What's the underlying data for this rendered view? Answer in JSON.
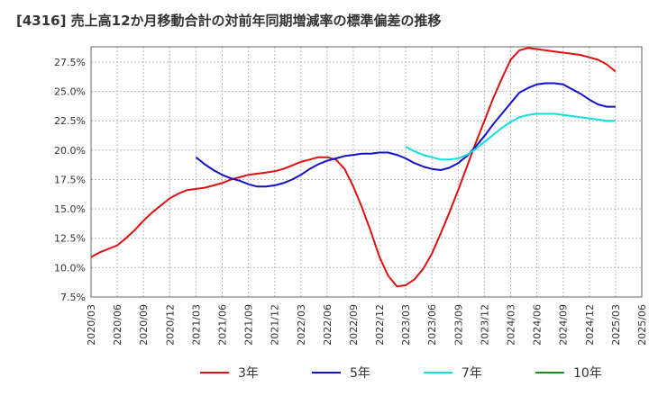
{
  "chart_data": {
    "type": "line",
    "title": "[4316]  売上高12か月移動合計の対前年同期増減率の標準偏差の推移",
    "xlabel": "",
    "ylabel": "",
    "x_ticks": [
      "2020/03",
      "2020/06",
      "2020/09",
      "2020/12",
      "2021/03",
      "2021/06",
      "2021/09",
      "2021/12",
      "2022/03",
      "2022/06",
      "2022/09",
      "2022/12",
      "2023/03",
      "2023/06",
      "2023/09",
      "2023/12",
      "2024/03",
      "2024/06",
      "2024/09",
      "2024/12",
      "2025/03",
      "2025/06"
    ],
    "y_ticks": [
      "7.5%",
      "10.0%",
      "12.5%",
      "15.0%",
      "17.5%",
      "20.0%",
      "22.5%",
      "25.0%",
      "27.5%"
    ],
    "ylim": [
      7.5,
      28.8
    ],
    "grid": true,
    "legend_position": "bottom",
    "series": [
      {
        "name": "3年",
        "color": "#dd1111",
        "x": [
          "2020/03",
          "2020/04",
          "2020/05",
          "2020/06",
          "2020/07",
          "2020/08",
          "2020/09",
          "2020/10",
          "2020/11",
          "2020/12",
          "2021/01",
          "2021/02",
          "2021/03",
          "2021/04",
          "2021/05",
          "2021/06",
          "2021/07",
          "2021/08",
          "2021/09",
          "2021/10",
          "2021/11",
          "2021/12",
          "2022/01",
          "2022/02",
          "2022/03",
          "2022/04",
          "2022/05",
          "2022/06",
          "2022/07",
          "2022/08",
          "2022/09",
          "2022/10",
          "2022/11",
          "2022/12",
          "2023/01",
          "2023/02",
          "2023/03",
          "2023/04",
          "2023/05",
          "2023/06",
          "2023/07",
          "2023/08",
          "2023/09",
          "2023/10",
          "2023/11",
          "2023/12",
          "2024/01",
          "2024/02",
          "2024/03",
          "2024/04",
          "2024/05",
          "2024/06",
          "2024/07",
          "2024/08",
          "2024/09",
          "2024/10",
          "2024/11",
          "2024/12",
          "2025/01",
          "2025/02",
          "2025/03"
        ],
        "values": [
          10.9,
          11.3,
          11.6,
          11.9,
          12.5,
          13.2,
          14.0,
          14.7,
          15.3,
          15.9,
          16.3,
          16.6,
          16.7,
          16.8,
          17.0,
          17.2,
          17.5,
          17.7,
          17.9,
          18.0,
          18.1,
          18.2,
          18.4,
          18.7,
          19.0,
          19.2,
          19.4,
          19.4,
          19.2,
          18.4,
          16.9,
          15.1,
          13.1,
          10.9,
          9.3,
          8.4,
          8.5,
          9.0,
          9.9,
          11.2,
          12.9,
          14.7,
          16.6,
          18.6,
          20.6,
          22.5,
          24.4,
          26.1,
          27.7,
          28.5,
          28.7,
          28.6,
          28.5,
          28.4,
          28.3,
          28.2,
          28.1,
          27.9,
          27.7,
          27.3,
          26.7
        ]
      },
      {
        "name": "5年",
        "color": "#1111cc",
        "x": [
          "2021/03",
          "2021/04",
          "2021/05",
          "2021/06",
          "2021/07",
          "2021/08",
          "2021/09",
          "2021/10",
          "2021/11",
          "2021/12",
          "2022/01",
          "2022/02",
          "2022/03",
          "2022/04",
          "2022/05",
          "2022/06",
          "2022/07",
          "2022/08",
          "2022/09",
          "2022/10",
          "2022/11",
          "2022/12",
          "2023/01",
          "2023/02",
          "2023/03",
          "2023/04",
          "2023/05",
          "2023/06",
          "2023/07",
          "2023/08",
          "2023/09",
          "2023/10",
          "2023/11",
          "2023/12",
          "2024/01",
          "2024/02",
          "2024/03",
          "2024/04",
          "2024/05",
          "2024/06",
          "2024/07",
          "2024/08",
          "2024/09",
          "2024/10",
          "2024/11",
          "2024/12",
          "2025/01",
          "2025/02",
          "2025/03"
        ],
        "values": [
          19.4,
          18.8,
          18.3,
          17.9,
          17.6,
          17.4,
          17.1,
          16.9,
          16.9,
          17.0,
          17.2,
          17.5,
          17.9,
          18.4,
          18.8,
          19.1,
          19.3,
          19.5,
          19.6,
          19.7,
          19.7,
          19.8,
          19.8,
          19.6,
          19.3,
          18.9,
          18.6,
          18.4,
          18.3,
          18.5,
          18.9,
          19.5,
          20.3,
          21.2,
          22.2,
          23.1,
          24.0,
          24.9,
          25.3,
          25.6,
          25.7,
          25.7,
          25.6,
          25.2,
          24.8,
          24.3,
          23.9,
          23.7,
          23.7
        ]
      },
      {
        "name": "7年",
        "color": "#11dddd",
        "x": [
          "2023/03",
          "2023/04",
          "2023/05",
          "2023/06",
          "2023/07",
          "2023/08",
          "2023/09",
          "2023/10",
          "2023/11",
          "2023/12",
          "2024/01",
          "2024/02",
          "2024/03",
          "2024/04",
          "2024/05",
          "2024/06",
          "2024/07",
          "2024/08",
          "2024/09",
          "2024/10",
          "2024/11",
          "2024/12",
          "2025/01",
          "2025/02",
          "2025/03"
        ],
        "values": [
          20.3,
          19.9,
          19.6,
          19.4,
          19.2,
          19.2,
          19.3,
          19.6,
          20.1,
          20.7,
          21.3,
          21.9,
          22.4,
          22.8,
          23.0,
          23.1,
          23.1,
          23.1,
          23.0,
          22.9,
          22.8,
          22.7,
          22.6,
          22.5,
          22.5
        ]
      },
      {
        "name": "10年",
        "color": "#228822",
        "x": [],
        "values": []
      }
    ]
  }
}
